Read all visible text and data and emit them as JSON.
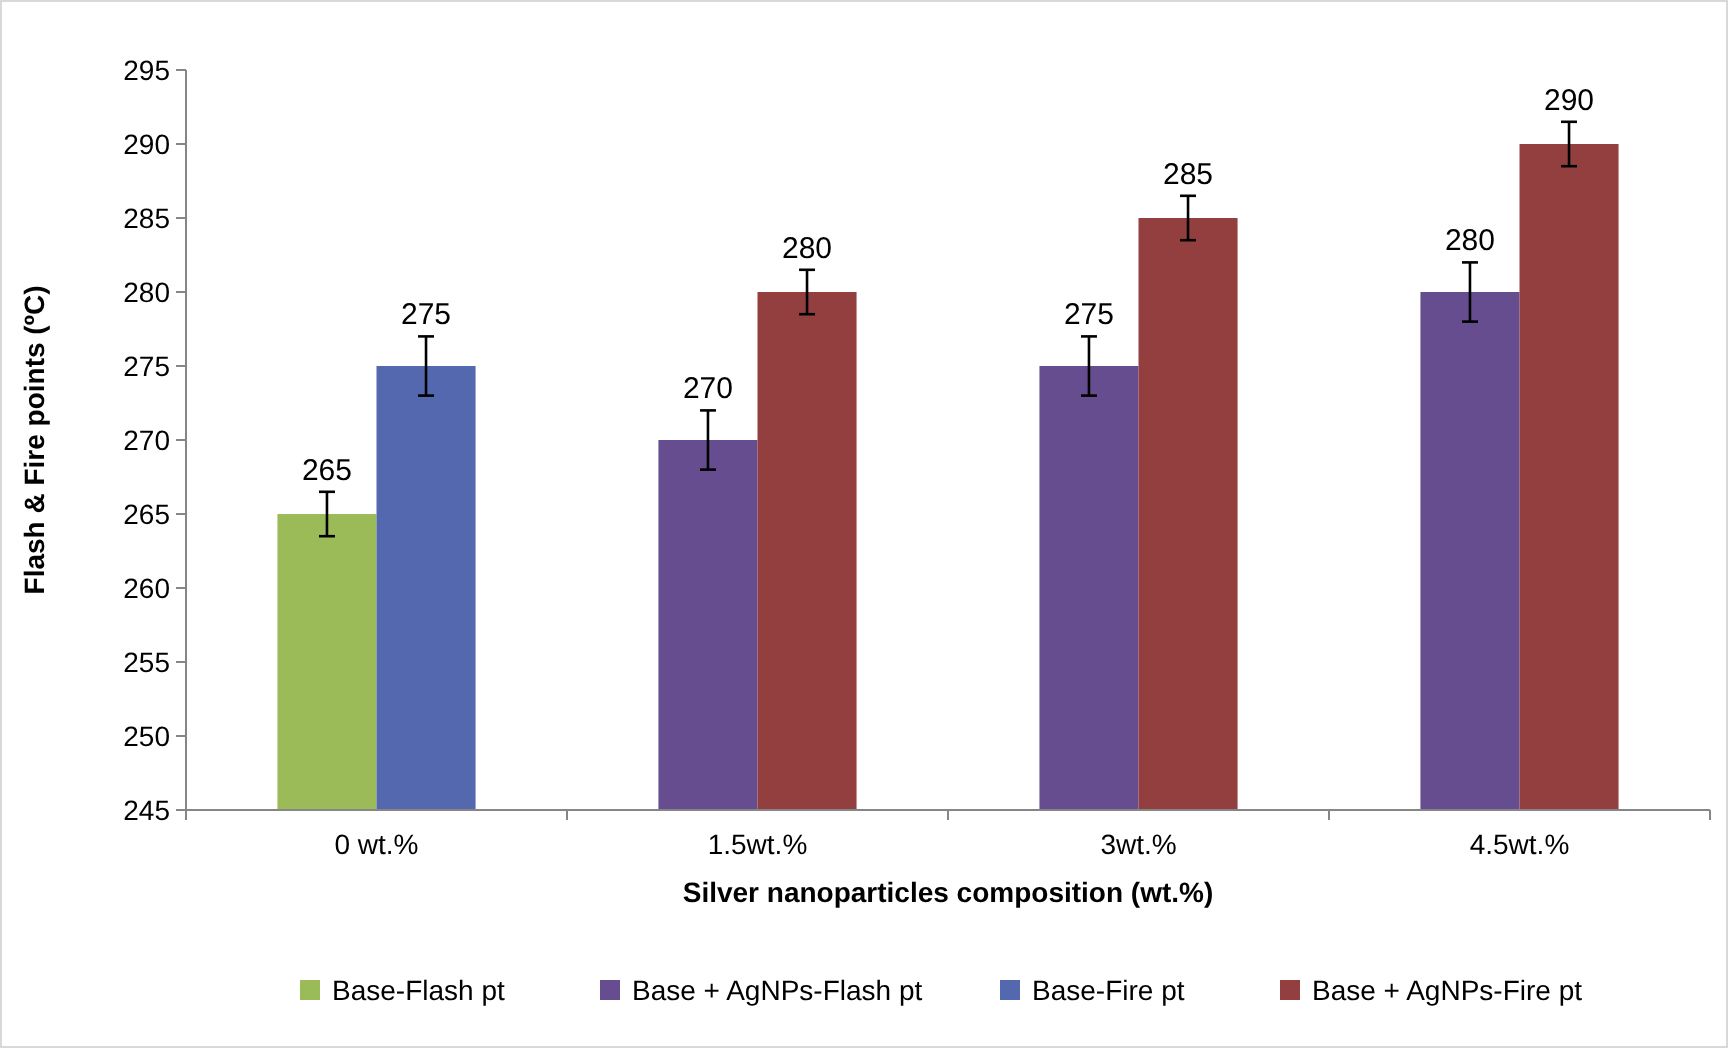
{
  "chart_data": {
    "type": "bar",
    "xlabel": "Silver nanoparticles composition (wt.%)",
    "ylabel": "Flash & Fire points (ºC)",
    "categories": [
      "0 wt.%",
      "1.5wt.%",
      "3wt.%",
      "4.5wt.%"
    ],
    "series": [
      {
        "name": "Base-Flash pt",
        "color": "#9bbb59",
        "values": [
          265,
          null,
          null,
          null
        ],
        "errors": [
          1.5,
          null,
          null,
          null
        ]
      },
      {
        "name": "Base + AgNPs-Flash pt",
        "color": "#654d8f",
        "values": [
          null,
          270,
          275,
          280
        ],
        "errors": [
          null,
          2,
          2,
          2
        ]
      },
      {
        "name": "Base-Fire pt",
        "color": "#5468b0",
        "values": [
          275,
          null,
          null,
          null
        ],
        "errors": [
          2,
          null,
          null,
          null
        ]
      },
      {
        "name": "Base + AgNPs-Fire pt",
        "color": "#943f3f",
        "values": [
          null,
          280,
          285,
          290
        ],
        "errors": [
          null,
          1.5,
          1.5,
          1.5
        ]
      }
    ],
    "ylim": [
      245,
      295
    ],
    "yticks": [
      245,
      250,
      255,
      260,
      265,
      270,
      275,
      280,
      285,
      290,
      295
    ],
    "grid": false,
    "legend": "bottom",
    "data_labels": true
  }
}
